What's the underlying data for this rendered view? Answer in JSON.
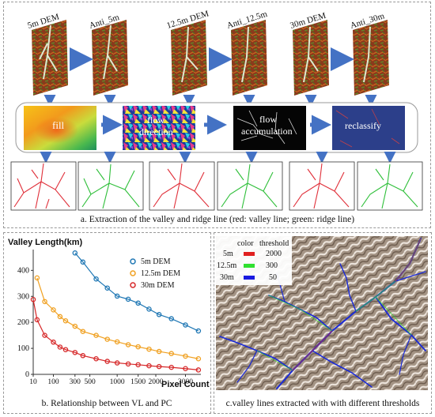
{
  "panel_a": {
    "dem_labels": [
      "5m DEM",
      "Anti_5m",
      "12.5m DEM",
      "Anti_12.5m",
      "30m DEM",
      "Anti_30m"
    ],
    "steps": {
      "fill": "fill",
      "flow_direction_1": "flow",
      "flow_direction_2": "direction",
      "flow_accumulation_1": "flow",
      "flow_accumulation_2": "accumulation",
      "reclassify": "reclassify"
    },
    "caption": "a. Extraction of the valley and ridge line (red: valley line;  green: ridge line)",
    "colors": {
      "valley": "#e0303a",
      "ridge": "#2fbf3a",
      "arrow": "#4472c4"
    }
  },
  "panel_b": {
    "caption": "b. Relationship between VL and PC",
    "chart_data": {
      "type": "line",
      "ylabel": "Valley Length(km)",
      "xlabel": "Pixel Count",
      "y_ticks": [
        "0",
        "100",
        "200",
        "300",
        "400"
      ],
      "x_ticks": [
        "10",
        "100",
        "300",
        "500",
        "1000",
        "1500",
        "2000",
        "3000"
      ],
      "ylim": [
        0,
        480
      ],
      "legend_position": "top-right",
      "series": [
        {
          "name": "5m DEM",
          "color": "#1f77b4",
          "x": [
            300,
            400,
            600,
            800,
            1000,
            1250,
            1500,
            1800,
            2100,
            2500,
            3000,
            3500
          ],
          "values": [
            467,
            432,
            367,
            332,
            301,
            289,
            274,
            251,
            230,
            214,
            190,
            167
          ]
        },
        {
          "name": "12.5m DEM",
          "color": "#f0a020",
          "x": [
            20,
            50,
            100,
            150,
            200,
            300,
            400,
            600,
            800,
            1000,
            1250,
            1500,
            1800,
            2100,
            2500,
            3000,
            3500
          ],
          "values": [
            371,
            280,
            248,
            222,
            206,
            185,
            165,
            150,
            135,
            125,
            114,
            106,
            97,
            88,
            80,
            70,
            60
          ]
        },
        {
          "name": "30m DEM",
          "color": "#d62728",
          "x": [
            10,
            20,
            50,
            100,
            150,
            200,
            300,
            400,
            600,
            800,
            1000,
            1250,
            1500,
            1800,
            2100,
            2500,
            3000,
            3500
          ],
          "values": [
            288,
            210,
            150,
            124,
            105,
            95,
            84,
            72,
            60,
            50,
            44,
            40,
            37,
            33,
            30,
            27,
            22,
            17
          ]
        }
      ]
    }
  },
  "panel_c": {
    "caption": "c.valley lines extracted with with different thresholds",
    "legend_header_color": "color",
    "legend_header_threshold": "threshold",
    "rows": [
      {
        "label": "5m",
        "color": "#e02020",
        "threshold": "2000"
      },
      {
        "label": "12.5m",
        "color": "#30e030",
        "threshold": "300"
      },
      {
        "label": "30m",
        "color": "#1a1ae0",
        "threshold": "50"
      }
    ]
  }
}
